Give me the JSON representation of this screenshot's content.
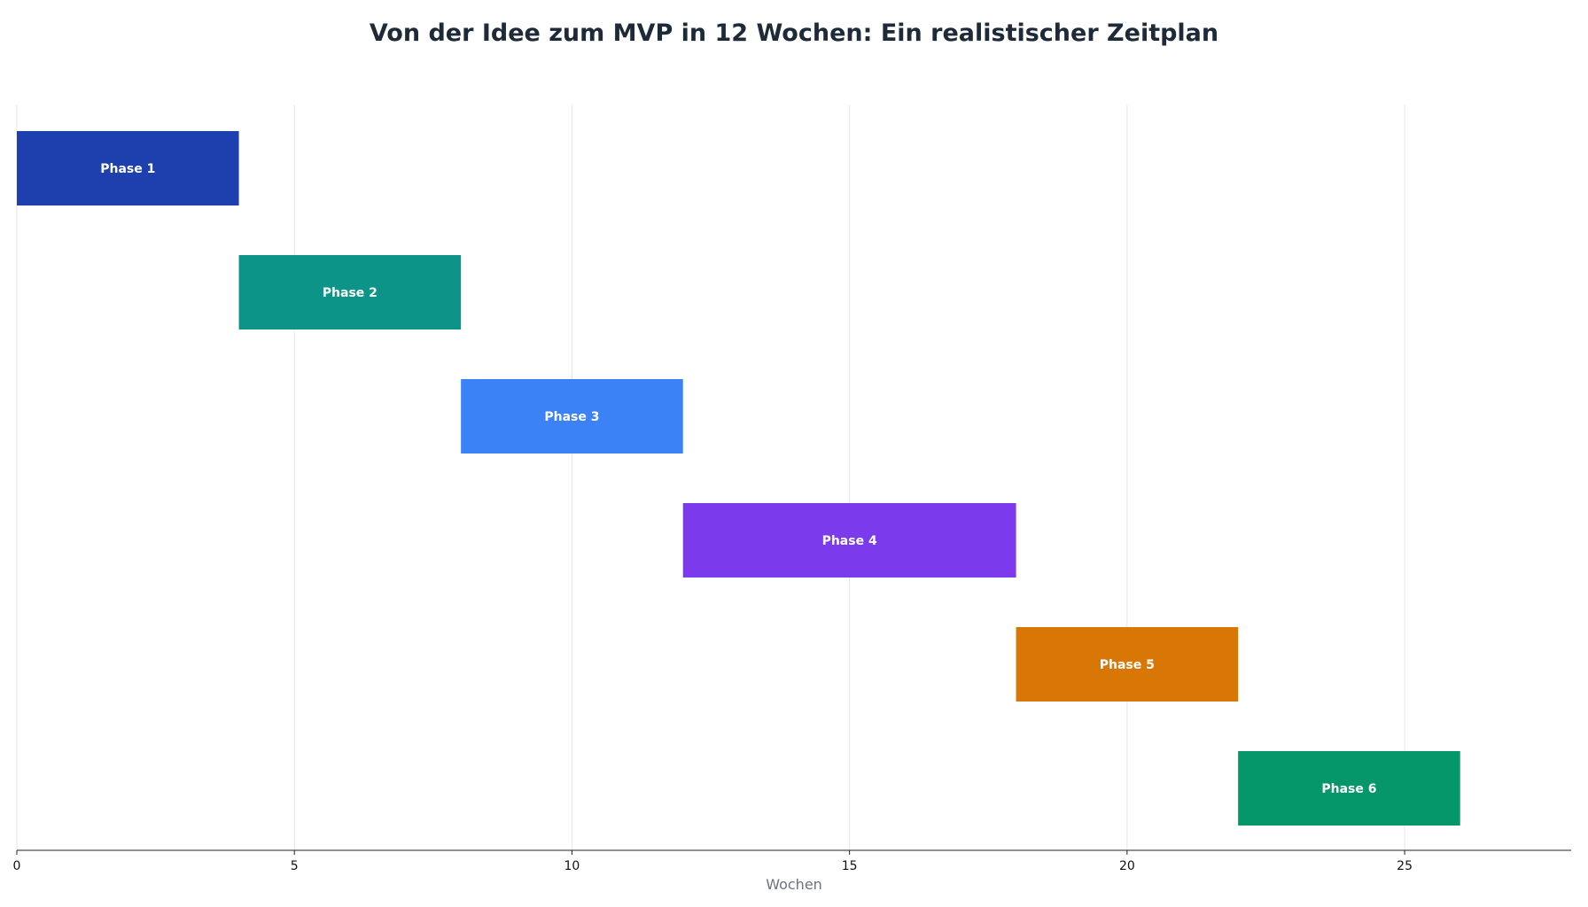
{
  "chart_data": {
    "type": "bar",
    "orientation": "horizontal",
    "subtype": "gantt",
    "title": "Von der Idee zum MVP in 12 Wochen: Ein realistischer Zeitplan",
    "xlabel": "Wochen",
    "ylabel": "",
    "xlim": [
      0,
      28
    ],
    "xticks": [
      0,
      5,
      10,
      15,
      20,
      25
    ],
    "grid": true,
    "legend": "none",
    "tasks": [
      {
        "label": "Phase 1",
        "start": 0,
        "end": 4,
        "color": "#1e40af"
      },
      {
        "label": "Phase 2",
        "start": 4,
        "end": 8,
        "color": "#0d9488"
      },
      {
        "label": "Phase 3",
        "start": 8,
        "end": 12,
        "color": "#3b82f6"
      },
      {
        "label": "Phase 4",
        "start": 12,
        "end": 18,
        "color": "#7c3aed"
      },
      {
        "label": "Phase 5",
        "start": 18,
        "end": 22,
        "color": "#d97706"
      },
      {
        "label": "Phase 6",
        "start": 22,
        "end": 26,
        "color": "#059669"
      }
    ]
  }
}
